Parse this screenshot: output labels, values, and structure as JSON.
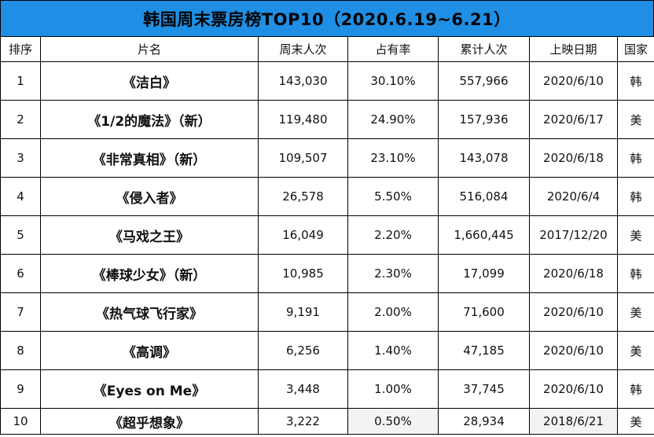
{
  "title": "韩国周末票房榜TOP10（2020.6.19~6.21）",
  "headers": [
    "排序",
    "片名",
    "周末人次",
    "占有率",
    "累计人次",
    "上映日期",
    "国家"
  ],
  "rows": [
    [
      "1",
      "《洁白》",
      "143,030",
      "30.10%",
      "557,966",
      "2020/6/10",
      "韩"
    ],
    [
      "2",
      "《1/2的魔法》（新）",
      "119,480",
      "24.90%",
      "157,936",
      "2020/6/17",
      "美"
    ],
    [
      "3",
      "《非常真相》（新）",
      "109,507",
      "23.10%",
      "143,078",
      "2020/6/18",
      "韩"
    ],
    [
      "4",
      "《侵入者》",
      "26,578",
      "5.50%",
      "516,084",
      "2020/6/4",
      "韩"
    ],
    [
      "5",
      "《马戏之王》",
      "16,049",
      "2.20%",
      "1,660,445",
      "2017/12/20",
      "美"
    ],
    [
      "6",
      "《棒球少女》（新）",
      "10,985",
      "2.30%",
      "17,099",
      "2020/6/18",
      "韩"
    ],
    [
      "7",
      "《热气球飞行家》",
      "9,191",
      "2.00%",
      "71,600",
      "2020/6/10",
      "美"
    ],
    [
      "8",
      "《高调》",
      "6,256",
      "1.40%",
      "47,185",
      "2020/6/10",
      "美"
    ],
    [
      "9",
      "《Eyes on Me》",
      "3,448",
      "1.00%",
      "37,745",
      "2020/6/10",
      "韩"
    ],
    [
      "10",
      "《超乎想象》",
      "3,222",
      "0.50%",
      "28,934",
      "2018/6/21",
      "美"
    ]
  ]
}
